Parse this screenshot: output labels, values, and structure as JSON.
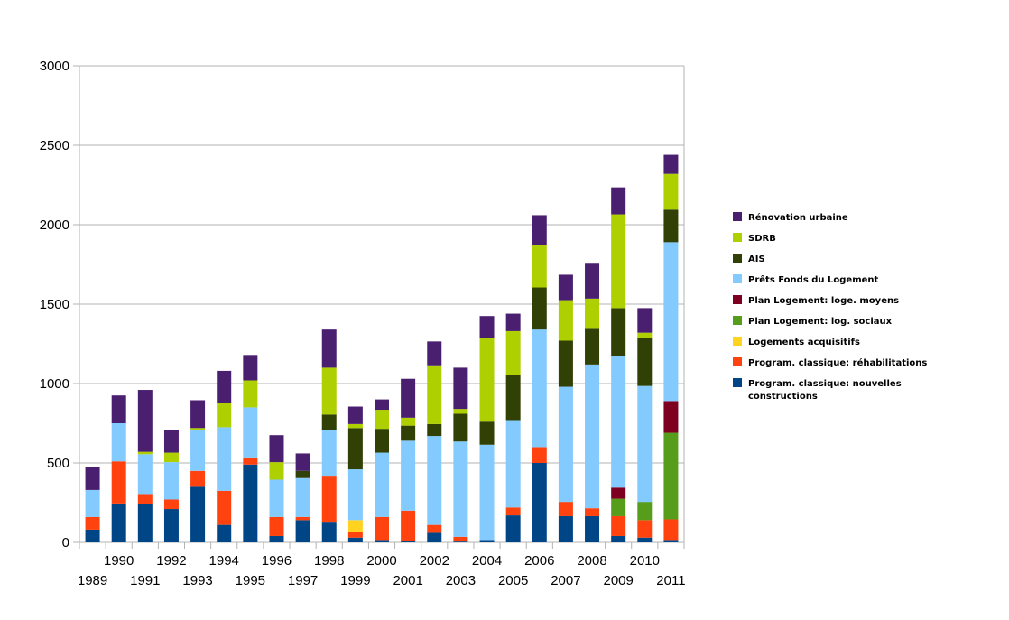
{
  "colors": {
    "gridline": "#b3b3b3",
    "axis": "#b3b3b3"
  },
  "chart_data": {
    "type": "bar",
    "stacked": true,
    "title": "",
    "xlabel": "",
    "ylabel": "",
    "ylim": [
      0,
      3000
    ],
    "yticks": [
      0,
      500,
      1000,
      1500,
      2000,
      2500,
      3000
    ],
    "grid": true,
    "legend_position": "right",
    "categories": [
      "1989",
      "1990",
      "1991",
      "1992",
      "1993",
      "1994",
      "1995",
      "1996",
      "1997",
      "1998",
      "1999",
      "2000",
      "2001",
      "2002",
      "2003",
      "2004",
      "2005",
      "2006",
      "2007",
      "2008",
      "2009",
      "2010",
      "2011"
    ],
    "series": [
      {
        "name": "Program. classique: nouvelles constructions",
        "color": "#004586",
        "values": [
          80,
          245,
          240,
          210,
          350,
          110,
          490,
          40,
          140,
          130,
          30,
          15,
          10,
          60,
          5,
          15,
          170,
          500,
          165,
          165,
          40,
          30,
          15
        ]
      },
      {
        "name": "Program. classique: réhabilitations",
        "color": "#ff420e",
        "values": [
          80,
          265,
          65,
          60,
          100,
          215,
          45,
          120,
          20,
          290,
          35,
          145,
          190,
          50,
          30,
          0,
          50,
          100,
          90,
          50,
          125,
          110,
          130
        ]
      },
      {
        "name": "Logements acquisitifs",
        "color": "#ffd320",
        "values": [
          0,
          0,
          0,
          0,
          0,
          0,
          0,
          0,
          0,
          0,
          75,
          0,
          0,
          0,
          0,
          0,
          0,
          0,
          0,
          0,
          0,
          0,
          0
        ]
      },
      {
        "name": "Plan Logement: log. sociaux",
        "color": "#579d1c",
        "values": [
          0,
          0,
          0,
          0,
          0,
          0,
          0,
          0,
          0,
          0,
          0,
          0,
          0,
          0,
          0,
          0,
          0,
          0,
          0,
          0,
          110,
          115,
          545
        ]
      },
      {
        "name": "Plan Logement: loge. moyens",
        "color": "#7e0021",
        "values": [
          0,
          0,
          0,
          0,
          0,
          0,
          0,
          0,
          0,
          0,
          0,
          0,
          0,
          0,
          0,
          0,
          0,
          0,
          0,
          0,
          70,
          0,
          200
        ]
      },
      {
        "name": "Prêts Fonds du Logement",
        "color": "#83caff",
        "values": [
          170,
          240,
          250,
          235,
          260,
          400,
          315,
          235,
          245,
          290,
          320,
          405,
          440,
          560,
          600,
          600,
          550,
          740,
          725,
          905,
          830,
          730,
          1000
        ]
      },
      {
        "name": "AIS",
        "color": "#314004",
        "values": [
          0,
          0,
          0,
          0,
          0,
          0,
          0,
          0,
          45,
          95,
          260,
          150,
          95,
          75,
          175,
          145,
          285,
          265,
          290,
          230,
          300,
          300,
          205
        ]
      },
      {
        "name": "SDRB",
        "color": "#aecf00",
        "values": [
          0,
          0,
          15,
          60,
          10,
          150,
          170,
          110,
          0,
          295,
          25,
          120,
          50,
          370,
          30,
          525,
          275,
          270,
          255,
          185,
          590,
          35,
          225
        ]
      },
      {
        "name": "Rénovation urbaine",
        "color": "#4b1f6f",
        "values": [
          145,
          175,
          390,
          140,
          175,
          205,
          160,
          170,
          110,
          240,
          110,
          65,
          245,
          150,
          260,
          140,
          110,
          185,
          160,
          225,
          170,
          155,
          120
        ]
      }
    ]
  }
}
